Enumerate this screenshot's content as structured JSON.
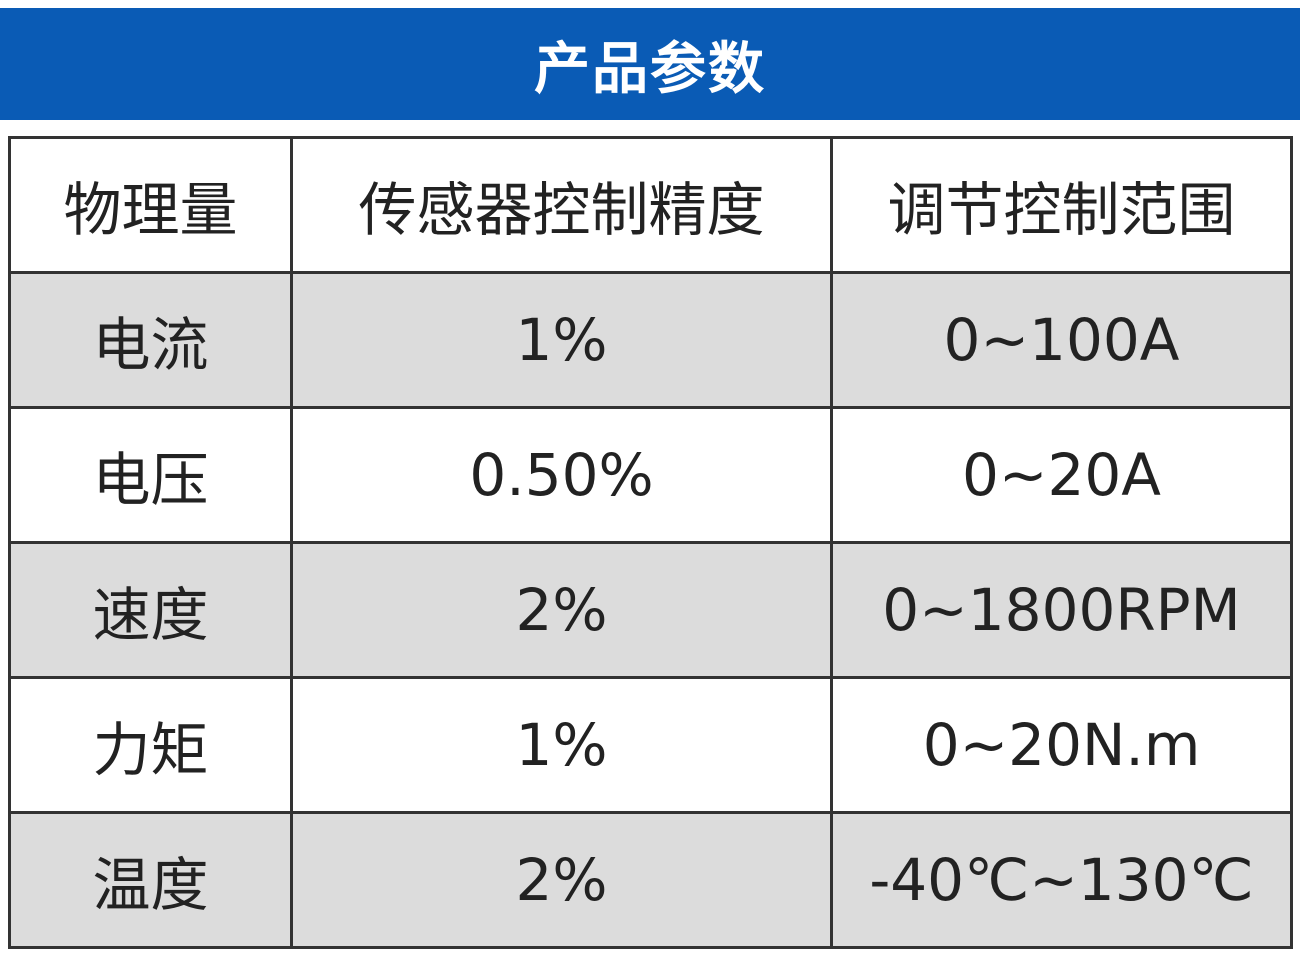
{
  "header": {
    "title": "产品参数"
  },
  "table": {
    "columns": [
      "物理量",
      "传感器控制精度",
      "调节控制范围"
    ],
    "rows": [
      [
        "电流",
        "1%",
        "0~100A"
      ],
      [
        "电压",
        "0.50%",
        "0~20A"
      ],
      [
        "速度",
        "2%",
        "0~1800RPM"
      ],
      [
        "力矩",
        "1%",
        "0~20N.m"
      ],
      [
        "温度",
        "2%",
        "-40℃~130℃"
      ]
    ]
  }
}
